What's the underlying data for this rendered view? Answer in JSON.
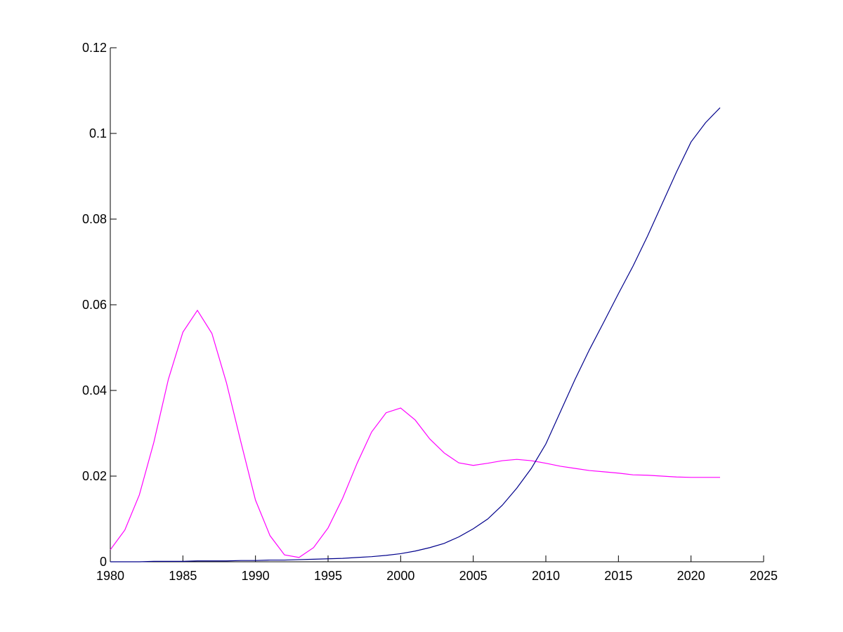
{
  "chart_data": {
    "type": "line",
    "x": [
      1980,
      1981,
      1982,
      1983,
      1984,
      1985,
      1986,
      1987,
      1988,
      1989,
      1990,
      1991,
      1992,
      1993,
      1994,
      1995,
      1996,
      1997,
      1998,
      1999,
      2000,
      2001,
      2002,
      2003,
      2004,
      2005,
      2006,
      2007,
      2008,
      2009,
      2010,
      2011,
      2012,
      2013,
      2014,
      2015,
      2016,
      2017,
      2018,
      2019,
      2020,
      2021,
      2022
    ],
    "series": [
      {
        "color": "#ff00ff",
        "values": [
          0.0028,
          0.0074,
          0.0156,
          0.0279,
          0.0426,
          0.0536,
          0.0587,
          0.0533,
          0.0418,
          0.0279,
          0.0144,
          0.0061,
          0.0016,
          0.001,
          0.0033,
          0.0079,
          0.0148,
          0.023,
          0.0303,
          0.0348,
          0.0359,
          0.0331,
          0.0287,
          0.0254,
          0.0231,
          0.0225,
          0.023,
          0.0236,
          0.0239,
          0.0236,
          0.023,
          0.0223,
          0.0218,
          0.0213,
          0.021,
          0.0207,
          0.0203,
          0.0202,
          0.02,
          0.0198,
          0.0197,
          0.0197,
          0.0197
        ]
      },
      {
        "color": "#00008b",
        "values": [
          0,
          0,
          0,
          0.0001,
          0.0001,
          0.0001,
          0.0002,
          0.0002,
          0.0002,
          0.0003,
          0.0003,
          0.0004,
          0.0004,
          0.0005,
          0.0006,
          0.0007,
          0.0008,
          0.001,
          0.0012,
          0.0015,
          0.0019,
          0.0025,
          0.0033,
          0.0043,
          0.0058,
          0.0077,
          0.01,
          0.0132,
          0.0172,
          0.0218,
          0.0275,
          0.035,
          0.0425,
          0.0495,
          0.056,
          0.0626,
          0.069,
          0.076,
          0.0835,
          0.091,
          0.098,
          0.1025,
          0.106
        ]
      }
    ],
    "xlim": [
      1980,
      2025
    ],
    "xticks": [
      1980,
      1985,
      1990,
      1995,
      2000,
      2005,
      2010,
      2015,
      2020,
      2025
    ],
    "ylim": [
      0,
      0.12
    ],
    "yticks": [
      0,
      0.02,
      0.04,
      0.06,
      0.08,
      0.1,
      0.12
    ]
  }
}
